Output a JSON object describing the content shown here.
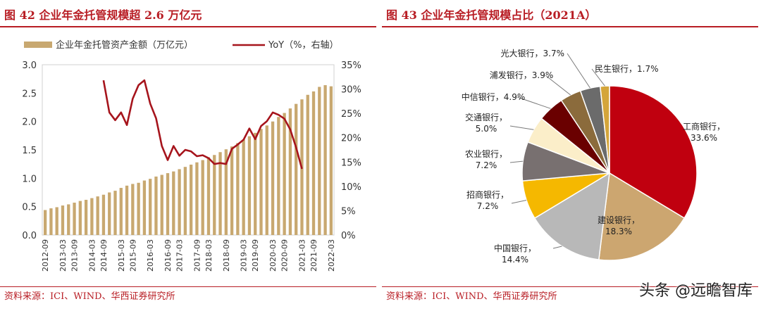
{
  "left": {
    "title": "图 42   企业年金托管规模超 2.6 万亿元",
    "source": "资料来源：ICI、WIND、华西证券研究所"
  },
  "right": {
    "title": "图 43   企业年金托管规模占比（2021A）",
    "source": "资料来源：ICI、WIND、华西证券研究所"
  },
  "watermark": "头条 @远瞻智库",
  "colors": {
    "accent": "#b81d24",
    "bar": "#c8a870",
    "line": "#a6141c"
  },
  "chart_data": [
    {
      "type": "bar",
      "title": "企业年金托管规模超 2.6 万亿元",
      "legend": [
        "企业年金托管资产金额（万亿元）",
        "YoY（%，右轴）"
      ],
      "legend_position": "top",
      "x_ticks": [
        "2012-09",
        "2013-03",
        "2013-09",
        "2014-03",
        "2014-09",
        "2015-03",
        "2015-09",
        "2016-03",
        "2016-09",
        "2017-03",
        "2017-09",
        "2018-03",
        "2018-09",
        "2019-03",
        "2019-09",
        "2020-03",
        "2020-09",
        "2021-03",
        "2021-09",
        "2022-03"
      ],
      "y_left_ticks": [
        "0.0",
        "0.5",
        "1.0",
        "1.5",
        "2.0",
        "2.5",
        "3.0"
      ],
      "y_right_ticks": [
        "0%",
        "5%",
        "10%",
        "15%",
        "20%",
        "25%",
        "30%",
        "35%"
      ],
      "y_left_lim": [
        0,
        3.0
      ],
      "y_right_lim": [
        0,
        35
      ],
      "series": [
        {
          "name": "企业年金托管资产金额（万亿元）",
          "type": "bar",
          "axis": "left",
          "values": [
            0.44,
            0.47,
            0.49,
            0.52,
            0.54,
            0.57,
            0.6,
            0.62,
            0.65,
            0.68,
            0.71,
            0.75,
            0.78,
            0.83,
            0.87,
            0.9,
            0.92,
            0.96,
            0.99,
            1.03,
            1.06,
            1.09,
            1.12,
            1.16,
            1.2,
            1.24,
            1.28,
            1.32,
            1.37,
            1.41,
            1.46,
            1.51,
            1.56,
            1.62,
            1.68,
            1.74,
            1.8,
            1.87,
            1.93,
            2.0,
            2.08,
            2.15,
            2.23,
            2.31,
            2.39,
            2.47,
            2.53,
            2.61,
            2.64,
            2.62
          ]
        },
        {
          "name": "YoY（%，右轴）",
          "type": "line",
          "axis": "right",
          "start_index": 10,
          "values": [
            31.8,
            25.2,
            23.6,
            25.2,
            22.6,
            28.0,
            30.8,
            31.8,
            27.0,
            24.0,
            18.3,
            15.4,
            18.3,
            16.3,
            17.5,
            17.2,
            16.2,
            16.4,
            15.8,
            14.6,
            14.8,
            14.6,
            17.7,
            18.6,
            19.6,
            21.9,
            19.7,
            22.4,
            23.4,
            25.2,
            24.7,
            23.9,
            21.7,
            18.0,
            13.6
          ]
        }
      ]
    },
    {
      "type": "pie",
      "title": "企业年金托管规模占比（2021A）",
      "slices": [
        {
          "label": "工商银行",
          "value": 33.6,
          "display": "33.6%",
          "color": "#c0000f"
        },
        {
          "label": "建设银行",
          "value": 18.3,
          "display": "18.3%",
          "color": "#cca670"
        },
        {
          "label": "中国银行",
          "value": 14.4,
          "display": "14.4%",
          "color": "#b8b8b8"
        },
        {
          "label": "招商银行",
          "value": 7.2,
          "display": "7.2%",
          "color": "#f5b800"
        },
        {
          "label": "农业银行",
          "value": 7.2,
          "display": "7.2%",
          "color": "#787070"
        },
        {
          "label": "交通银行",
          "value": 5.0,
          "display": "5.0%",
          "color": "#fbeec9"
        },
        {
          "label": "中信银行",
          "value": 4.9,
          "display": "4.9%",
          "color": "#6a0000"
        },
        {
          "label": "浦发银行",
          "value": 3.9,
          "display": "3.9%",
          "color": "#8b6b3c"
        },
        {
          "label": "光大银行",
          "value": 3.7,
          "display": "3.7%",
          "color": "#6b6b6b"
        },
        {
          "label": "民生银行",
          "value": 1.7,
          "display": "1.7%",
          "color": "#d4a53a"
        }
      ]
    }
  ]
}
